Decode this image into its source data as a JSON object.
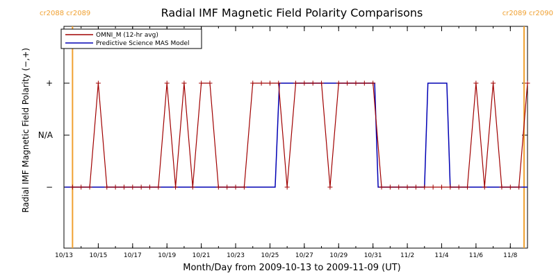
{
  "chart_data": {
    "type": "line",
    "title": "Radial IMF Magnetic Field Polarity Comparisons",
    "xlabel": "Month/Day from 2009-10-13 to 2009-11-09 (UT)",
    "ylabel": "Radial IMF Magnetic Field Polarity (−,+)",
    "xlim_days": [
      0,
      27
    ],
    "y_categories": [
      "−",
      "N/A",
      "+"
    ],
    "x_tick_labels": [
      {
        "day": 0,
        "label": "10/13"
      },
      {
        "day": 2,
        "label": "10/15"
      },
      {
        "day": 4,
        "label": "10/17"
      },
      {
        "day": 6,
        "label": "10/19"
      },
      {
        "day": 8,
        "label": "10/21"
      },
      {
        "day": 10,
        "label": "10/23"
      },
      {
        "day": 12,
        "label": "10/25"
      },
      {
        "day": 14,
        "label": "10/27"
      },
      {
        "day": 16,
        "label": "10/29"
      },
      {
        "day": 18,
        "label": "10/31"
      },
      {
        "day": 20,
        "label": "11/2"
      },
      {
        "day": 22,
        "label": "11/4"
      },
      {
        "day": 24,
        "label": "11/6"
      },
      {
        "day": 26,
        "label": "11/8"
      }
    ],
    "carrington_labels": {
      "left": "cr2088 cr2089",
      "right": "cr2089 cr2090"
    },
    "carrington_boundaries_days": [
      0.5,
      26.8
    ],
    "legend_position": "top-left",
    "series": [
      {
        "name": "OMNI_M (12-hr avg)",
        "color": "#a00000",
        "marker": "plus",
        "x": [
          0.5,
          1,
          1.5,
          2,
          2.5,
          3,
          3.5,
          4,
          4.5,
          5,
          5.5,
          6,
          6.5,
          7,
          7.5,
          8,
          8.5,
          9,
          9.5,
          10,
          10.5,
          11,
          11.5,
          12,
          12.5,
          13,
          13.5,
          14,
          14.5,
          15,
          15.5,
          16,
          16.5,
          17,
          17.5,
          18,
          18.5,
          19,
          19.5,
          20,
          20.5,
          21,
          21.5,
          22,
          22.5,
          23,
          23.5,
          24,
          24.5,
          25,
          25.5,
          26,
          26.5,
          27
        ],
        "y": [
          -1,
          -1,
          -1,
          1,
          -1,
          -1,
          -1,
          -1,
          -1,
          -1,
          -1,
          1,
          -1,
          1,
          -1,
          1,
          1,
          -1,
          -1,
          -1,
          -1,
          1,
          1,
          1,
          1,
          -1,
          1,
          1,
          1,
          1,
          -1,
          1,
          1,
          1,
          1,
          1,
          -1,
          -1,
          -1,
          -1,
          -1,
          -1,
          -1,
          -1,
          -1,
          -1,
          -1,
          1,
          -1,
          1,
          -1,
          -1,
          -1,
          1
        ]
      },
      {
        "name": "Predictive Science MAS Model",
        "color": "#0000b4",
        "marker": "none",
        "x": [
          0.05,
          12.3,
          12.55,
          18.1,
          18.3,
          21.0,
          21.2,
          22.3,
          22.5,
          27.0
        ],
        "y": [
          -1,
          -1,
          1,
          1,
          -1,
          -1,
          1,
          1,
          -1,
          -1
        ]
      }
    ]
  }
}
